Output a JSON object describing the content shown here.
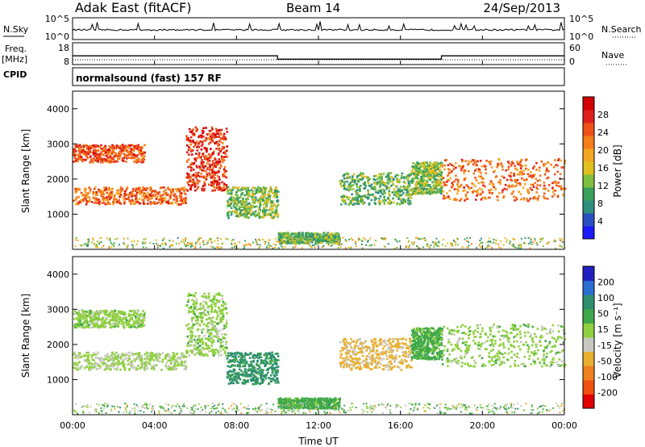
{
  "header": {
    "radar": "Adak East (fitACF)",
    "beam": "Beam 14",
    "date": "24/Sep/2013"
  },
  "top_panels": {
    "nsky_label": "N.Sky",
    "nsky_ticks": [
      "10^5",
      "10^0"
    ],
    "nsearch_label": "N.Search",
    "freq_label_1": "Freq.",
    "freq_label_2": "[MHz]",
    "freq_ticks": [
      "18",
      "8"
    ],
    "nave_label": "Nave",
    "nave_ticks": [
      "60",
      "0"
    ],
    "cpid_label": "CPID",
    "cpid_text": "normalsound (fast) 157 RF"
  },
  "axes": {
    "ylabel": "Slant Range [km]",
    "xlabel": "Time UT",
    "yticks": [
      "1000",
      "2000",
      "3000",
      "4000"
    ],
    "xticks": [
      "00:00",
      "04:00",
      "08:00",
      "12:00",
      "16:00",
      "20:00",
      "00:00"
    ]
  },
  "colorbars": {
    "power": {
      "label": "Power [dB]",
      "ticks": [
        "4",
        "8",
        "12",
        "16",
        "20",
        "24",
        "28"
      ],
      "colors": [
        "#1a1aff",
        "#2a4fbf",
        "#2f8f7f",
        "#3aa05a",
        "#7fbf3f",
        "#e0c020",
        "#f5a623",
        "#f57d1a",
        "#f0501a",
        "#e0201a",
        "#d00000"
      ]
    },
    "velocity": {
      "label": "Velocity [m s⁻¹]",
      "ticks": [
        "200",
        "100",
        "50",
        "15",
        "-15",
        "-50",
        "-100",
        "-200"
      ],
      "colors": [
        "#2020c0",
        "#2a6fd0",
        "#2e8f6f",
        "#3fa84a",
        "#8fd040",
        "#c8c8c0",
        "#e8b030",
        "#f08020",
        "#f05010",
        "#e00000"
      ]
    }
  },
  "chart_data": [
    {
      "type": "heatmap",
      "name": "Power",
      "x_range": [
        "00:00",
        "24:00"
      ],
      "y_range_km": [
        0,
        4500
      ],
      "units": "dB",
      "regions": [
        {
          "t_start_h": 0.0,
          "t_end_h": 3.5,
          "range_km": [
            2500,
            3000
          ],
          "value": 24
        },
        {
          "t_start_h": 0.0,
          "t_end_h": 5.5,
          "range_km": [
            1300,
            1800
          ],
          "value": 22
        },
        {
          "t_start_h": 5.5,
          "t_end_h": 7.5,
          "range_km": [
            1700,
            3500
          ],
          "value": 26
        },
        {
          "t_start_h": 7.5,
          "t_end_h": 10.0,
          "range_km": [
            900,
            1800
          ],
          "value": 12
        },
        {
          "t_start_h": 10.0,
          "t_end_h": 13.0,
          "range_km": [
            200,
            500
          ],
          "value": 10
        },
        {
          "t_start_h": 13.0,
          "t_end_h": 16.5,
          "range_km": [
            1300,
            2200
          ],
          "value": 10
        },
        {
          "t_start_h": 16.5,
          "t_end_h": 18.0,
          "range_km": [
            1600,
            2500
          ],
          "value": 12
        },
        {
          "t_start_h": 18.0,
          "t_end_h": 24.0,
          "range_km": [
            1400,
            2600
          ],
          "value": 22
        }
      ]
    },
    {
      "type": "heatmap",
      "name": "Velocity",
      "x_range": [
        "00:00",
        "24:00"
      ],
      "y_range_km": [
        0,
        4500
      ],
      "units": "m/s",
      "regions": [
        {
          "t_start_h": 0.0,
          "t_end_h": 3.5,
          "range_km": [
            2500,
            3000
          ],
          "value": 0
        },
        {
          "t_start_h": 0.0,
          "t_end_h": 5.5,
          "range_km": [
            1300,
            1800
          ],
          "value": -10
        },
        {
          "t_start_h": 5.5,
          "t_end_h": 7.5,
          "range_km": [
            1700,
            3500
          ],
          "value": 0
        },
        {
          "t_start_h": 7.5,
          "t_end_h": 10.0,
          "range_km": [
            900,
            1800
          ],
          "value": 60
        },
        {
          "t_start_h": 10.0,
          "t_end_h": 13.0,
          "range_km": [
            200,
            500
          ],
          "value": 30
        },
        {
          "t_start_h": 13.0,
          "t_end_h": 16.5,
          "range_km": [
            1300,
            2200
          ],
          "value": -60
        },
        {
          "t_start_h": 16.5,
          "t_end_h": 18.0,
          "range_km": [
            1600,
            2500
          ],
          "value": 30
        },
        {
          "t_start_h": 18.0,
          "t_end_h": 24.0,
          "range_km": [
            1400,
            2600
          ],
          "value": 0
        }
      ]
    },
    {
      "type": "line",
      "name": "Frequency",
      "units": "MHz",
      "segments": [
        {
          "t_start_h": 0.0,
          "t_end_h": 10.0,
          "value": 12
        },
        {
          "t_start_h": 10.0,
          "t_end_h": 18.0,
          "value": 10.5
        },
        {
          "t_start_h": 18.0,
          "t_end_h": 24.0,
          "value": 12
        }
      ]
    }
  ]
}
